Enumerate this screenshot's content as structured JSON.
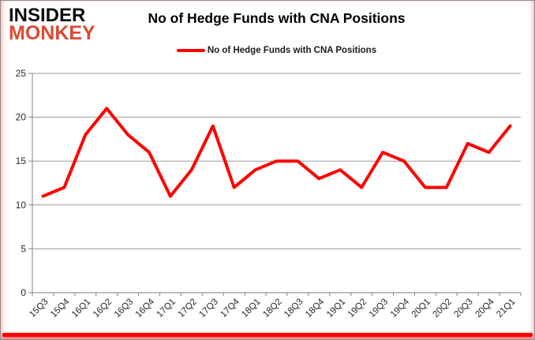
{
  "logo": {
    "line1": "INSIDER",
    "line2": "MONKEY"
  },
  "header": {
    "title": "No of Hedge Funds with CNA Positions"
  },
  "legend": {
    "label": "No of Hedge Funds with CNA Positions",
    "line_color": "#ff0000"
  },
  "colors": {
    "series_red": "#ff0000",
    "logo_red": "#db4a32",
    "gridline": "#9a9a9a",
    "axis": "#7f7f7f",
    "tick_text": "#262626",
    "bottom_bar_red": "#fb0000"
  },
  "chart_data": {
    "type": "line",
    "title": "No of Hedge Funds with CNA Positions",
    "categories": [
      "15Q3",
      "15Q4",
      "16Q1",
      "16Q2",
      "16Q3",
      "16Q4",
      "17Q1",
      "17Q2",
      "17Q3",
      "17Q4",
      "18Q1",
      "18Q2",
      "18Q3",
      "18Q4",
      "19Q1",
      "19Q2",
      "19Q3",
      "19Q4",
      "20Q1",
      "20Q2",
      "20Q3",
      "20Q4",
      "21Q1"
    ],
    "series": [
      {
        "name": "No of Hedge Funds with CNA Positions",
        "color": "#ff0000",
        "values": [
          11,
          12,
          18,
          21,
          18,
          16,
          11,
          14,
          19,
          12,
          14,
          15,
          15,
          13,
          14,
          12,
          16,
          15,
          12,
          12,
          17,
          16,
          19
        ]
      }
    ],
    "xlabel": "",
    "ylabel": "",
    "ylim": [
      0,
      25
    ],
    "yticks": [
      0,
      5,
      10,
      15,
      20,
      25
    ],
    "grid": true,
    "legend_position": "top"
  }
}
